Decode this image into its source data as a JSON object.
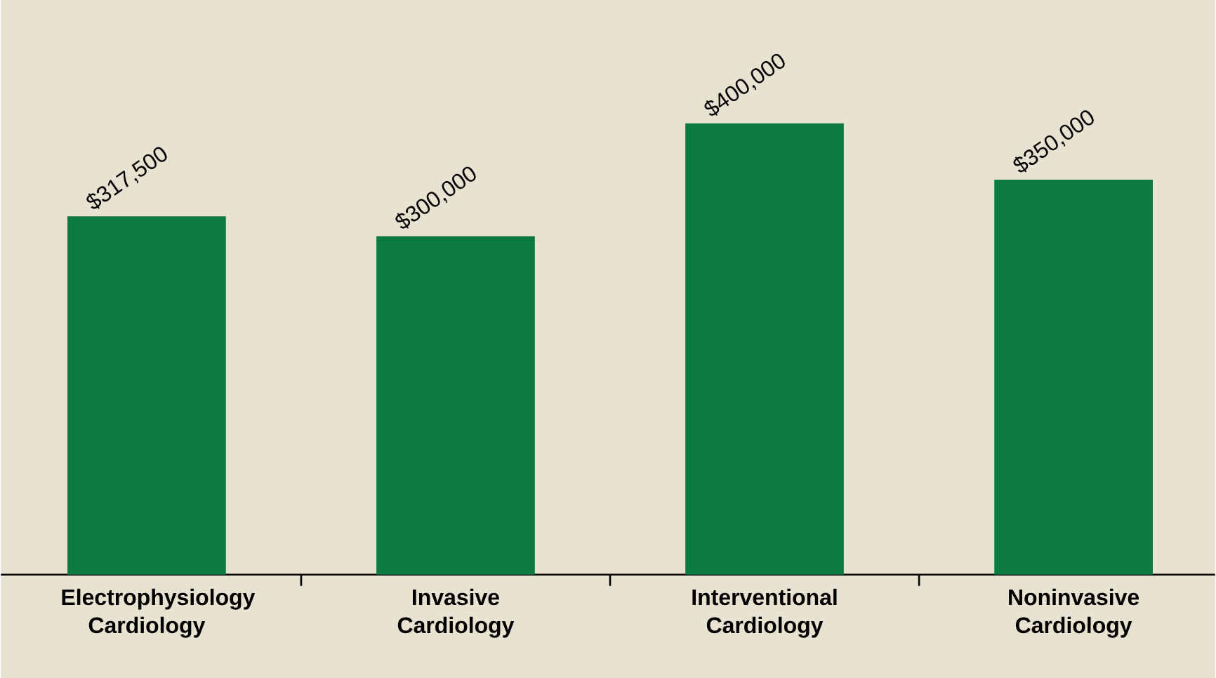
{
  "chart_data": {
    "type": "bar",
    "categories": [
      "Electrophysiology Cardiology",
      "Invasive Cardiology",
      "Interventional Cardiology",
      "Noninvasive Cardiology"
    ],
    "values": [
      317500,
      300000,
      400000,
      350000
    ],
    "value_labels": [
      "$317,500",
      "$300,000",
      "$400,000",
      "$350,000"
    ],
    "color": "#0b7a3f"
  }
}
